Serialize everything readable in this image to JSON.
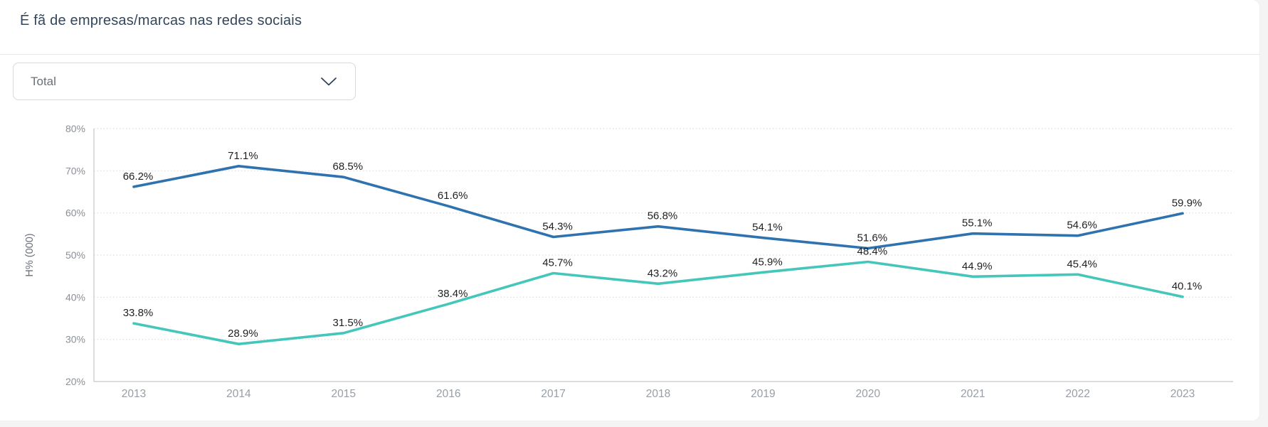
{
  "page": {
    "title": "É fã de empresas/marcas nas redes sociais"
  },
  "filter": {
    "value": "Total",
    "chevron_icon": "chevron-down"
  },
  "theme": {
    "background": "#f4f4f5",
    "card": "#ffffff",
    "title_color": "#33465b",
    "divider": "#e8e8e8",
    "dropdown_border": "#d9d9d9",
    "dropdown_text": "#6b7077",
    "chevron_color": "#2c3c5c",
    "grid_color": "#dcdcdc",
    "axis_color": "#cfcfcf",
    "ytick_color": "#8b9097",
    "xtick_color": "#989ea5",
    "data_label_color": "#1f1f1f"
  },
  "chart_data": {
    "type": "line",
    "title": "",
    "xlabel": "",
    "ylabel": "H% (000)",
    "categories": [
      "2013",
      "2014",
      "2015",
      "2016",
      "2017",
      "2018",
      "2019",
      "2020",
      "2021",
      "2022",
      "2023"
    ],
    "series": [
      {
        "name": "blue-line",
        "color": "#2e72b0",
        "values": [
          66.2,
          71.1,
          68.5,
          61.6,
          54.3,
          56.8,
          54.1,
          51.6,
          55.1,
          54.6,
          59.9
        ],
        "labels": [
          "66.2%",
          "71.1%",
          "68.5%",
          "61.6%",
          "54.3%",
          "56.8%",
          "54.1%",
          "51.6%",
          "55.1%",
          "54.6%",
          "59.9%"
        ]
      },
      {
        "name": "teal-line",
        "color": "#45c6bb",
        "values": [
          33.8,
          28.9,
          31.5,
          38.4,
          45.7,
          43.2,
          45.9,
          48.4,
          44.9,
          45.4,
          40.1
        ],
        "labels": [
          "33.8%",
          "28.9%",
          "31.5%",
          "38.4%",
          "45.7%",
          "43.2%",
          "45.9%",
          "48.4%",
          "44.9%",
          "45.4%",
          "40.1%"
        ]
      }
    ],
    "ylim": [
      20,
      80
    ],
    "ytick_step": 10,
    "ytick_labels": [
      "20%",
      "30%",
      "40%",
      "50%",
      "60%",
      "70%",
      "80%"
    ],
    "grid": true,
    "grid_style": "dotted",
    "legend": "none",
    "data_labels": true
  }
}
